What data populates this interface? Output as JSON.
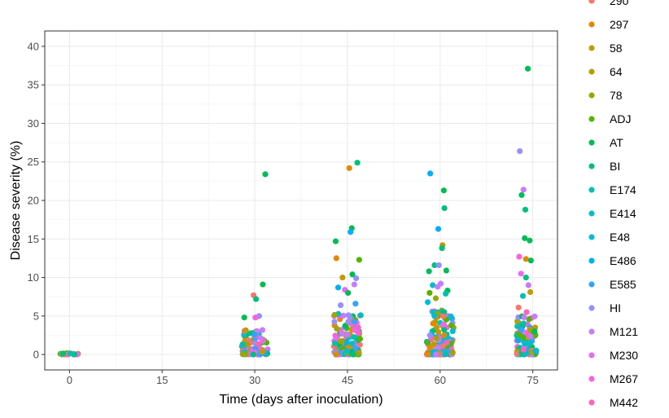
{
  "chart_data": {
    "type": "scatter",
    "title": "",
    "xlabel": "Time (days after inoculation)",
    "ylabel": "Disease severity (%)",
    "xlim": [
      -4,
      79
    ],
    "ylim": [
      -2,
      42
    ],
    "xticks": [
      0,
      15,
      30,
      45,
      60,
      75
    ],
    "xtick_labels": [
      "0",
      "15",
      "30",
      "45",
      "60",
      "75"
    ],
    "yticks": [
      0,
      5,
      10,
      15,
      20,
      25,
      30,
      35,
      40
    ],
    "ytick_labels": [
      "0",
      "5",
      "10",
      "15",
      "20",
      "25",
      "30",
      "35",
      "40"
    ],
    "grid": true,
    "legend_position": "right",
    "series": [
      {
        "name": "290",
        "color": "#F8766D"
      },
      {
        "name": "297",
        "color": "#E38900"
      },
      {
        "name": "58",
        "color": "#C49A00"
      },
      {
        "name": "64",
        "color": "#BA9E00"
      },
      {
        "name": "78",
        "color": "#99A800"
      },
      {
        "name": "ADJ",
        "color": "#53B400"
      },
      {
        "name": "AT",
        "color": "#00BC56"
      },
      {
        "name": "BI",
        "color": "#00BF7D"
      },
      {
        "name": "E174",
        "color": "#00C0AF"
      },
      {
        "name": "E414",
        "color": "#00BFC4"
      },
      {
        "name": "E48",
        "color": "#00BCD8"
      },
      {
        "name": "E486",
        "color": "#00B0F6"
      },
      {
        "name": "E585",
        "color": "#35A2FF"
      },
      {
        "name": "HI",
        "color": "#9590FF"
      },
      {
        "name": "M121",
        "color": "#C77CFF"
      },
      {
        "name": "M230",
        "color": "#E76BF3"
      },
      {
        "name": "M267",
        "color": "#FA62DB"
      },
      {
        "name": "M442",
        "color": "#FF62BC"
      }
    ],
    "points": [
      {
        "x": 31.7,
        "y": 23.4,
        "series": "AT"
      },
      {
        "x": 31.3,
        "y": 9.1,
        "series": "AT"
      },
      {
        "x": 29.8,
        "y": 7.7,
        "series": "290"
      },
      {
        "x": 30.2,
        "y": 7.2,
        "series": "BI"
      },
      {
        "x": 30.7,
        "y": 5.0,
        "series": "HI"
      },
      {
        "x": 30.1,
        "y": 4.8,
        "series": "M267"
      },
      {
        "x": 28.3,
        "y": 4.8,
        "series": "AT"
      },
      {
        "x": 45.3,
        "y": 24.2,
        "series": "297"
      },
      {
        "x": 46.6,
        "y": 24.9,
        "series": "BI"
      },
      {
        "x": 45.7,
        "y": 16.4,
        "series": "AT"
      },
      {
        "x": 45.5,
        "y": 15.9,
        "series": "E486"
      },
      {
        "x": 43.1,
        "y": 14.7,
        "series": "AT"
      },
      {
        "x": 43.2,
        "y": 12.5,
        "series": "297"
      },
      {
        "x": 46.9,
        "y": 12.3,
        "series": "ADJ"
      },
      {
        "x": 45.8,
        "y": 10.4,
        "series": "AT"
      },
      {
        "x": 44.2,
        "y": 10.0,
        "series": "58"
      },
      {
        "x": 46.4,
        "y": 9.9,
        "series": "HI"
      },
      {
        "x": 46.1,
        "y": 9.1,
        "series": "M121"
      },
      {
        "x": 43.5,
        "y": 8.7,
        "series": "E486"
      },
      {
        "x": 44.6,
        "y": 8.4,
        "series": "M230"
      },
      {
        "x": 45.1,
        "y": 8.0,
        "series": "AT"
      },
      {
        "x": 46.3,
        "y": 6.6,
        "series": "E585"
      },
      {
        "x": 43.9,
        "y": 6.4,
        "series": "HI"
      },
      {
        "x": 58.4,
        "y": 23.5,
        "series": "E486"
      },
      {
        "x": 60.6,
        "y": 21.3,
        "series": "AT"
      },
      {
        "x": 60.7,
        "y": 19.0,
        "series": "BI"
      },
      {
        "x": 59.7,
        "y": 16.3,
        "series": "E486"
      },
      {
        "x": 60.4,
        "y": 14.2,
        "series": "64"
      },
      {
        "x": 60.3,
        "y": 13.8,
        "series": "BI"
      },
      {
        "x": 59.1,
        "y": 11.6,
        "series": "BI"
      },
      {
        "x": 59.8,
        "y": 11.6,
        "series": "HI"
      },
      {
        "x": 58.2,
        "y": 10.8,
        "series": "AT"
      },
      {
        "x": 61.0,
        "y": 10.9,
        "series": "AT"
      },
      {
        "x": 60.1,
        "y": 9.2,
        "series": "M121"
      },
      {
        "x": 58.8,
        "y": 9.0,
        "series": "E414"
      },
      {
        "x": 59.6,
        "y": 8.8,
        "series": "M121"
      },
      {
        "x": 61.2,
        "y": 8.3,
        "series": "AT"
      },
      {
        "x": 58.3,
        "y": 8.0,
        "series": "ADJ"
      },
      {
        "x": 60.9,
        "y": 7.9,
        "series": "E174"
      },
      {
        "x": 59.3,
        "y": 7.3,
        "series": "78"
      },
      {
        "x": 58.0,
        "y": 6.8,
        "series": "E48"
      },
      {
        "x": 74.2,
        "y": 37.1,
        "series": "AT"
      },
      {
        "x": 72.9,
        "y": 26.4,
        "series": "HI"
      },
      {
        "x": 73.5,
        "y": 21.4,
        "series": "M121"
      },
      {
        "x": 73.2,
        "y": 20.7,
        "series": "AT"
      },
      {
        "x": 73.8,
        "y": 18.8,
        "series": "BI"
      },
      {
        "x": 73.7,
        "y": 15.1,
        "series": "AT"
      },
      {
        "x": 74.5,
        "y": 14.8,
        "series": "AT"
      },
      {
        "x": 72.8,
        "y": 12.7,
        "series": "M267"
      },
      {
        "x": 73.9,
        "y": 12.4,
        "series": "297"
      },
      {
        "x": 74.7,
        "y": 12.2,
        "series": "AT"
      },
      {
        "x": 73.1,
        "y": 10.5,
        "series": "M230"
      },
      {
        "x": 73.9,
        "y": 10.0,
        "series": "BI"
      },
      {
        "x": 74.3,
        "y": 9.0,
        "series": "M121"
      },
      {
        "x": 74.6,
        "y": 8.1,
        "series": "58"
      },
      {
        "x": 73.4,
        "y": 7.6,
        "series": "E174"
      },
      {
        "x": 72.7,
        "y": 6.1,
        "series": "290"
      },
      {
        "x": 74.0,
        "y": 5.5,
        "series": "M442"
      }
    ],
    "dense_groups": [
      {
        "x": 0.0,
        "jitter": 1.8,
        "ymin": 0,
        "ymax": 0.2,
        "count": 24
      },
      {
        "x": 30.0,
        "jitter": 2.1,
        "ymin": 0,
        "ymax": 3.2,
        "count": 90
      },
      {
        "x": 45.0,
        "jitter": 2.2,
        "ymin": 0,
        "ymax": 5.5,
        "count": 130
      },
      {
        "x": 60.0,
        "jitter": 2.2,
        "ymin": 0,
        "ymax": 6.0,
        "count": 150
      },
      {
        "x": 74.0,
        "jitter": 1.6,
        "ymin": 0,
        "ymax": 5.0,
        "count": 110
      }
    ]
  }
}
